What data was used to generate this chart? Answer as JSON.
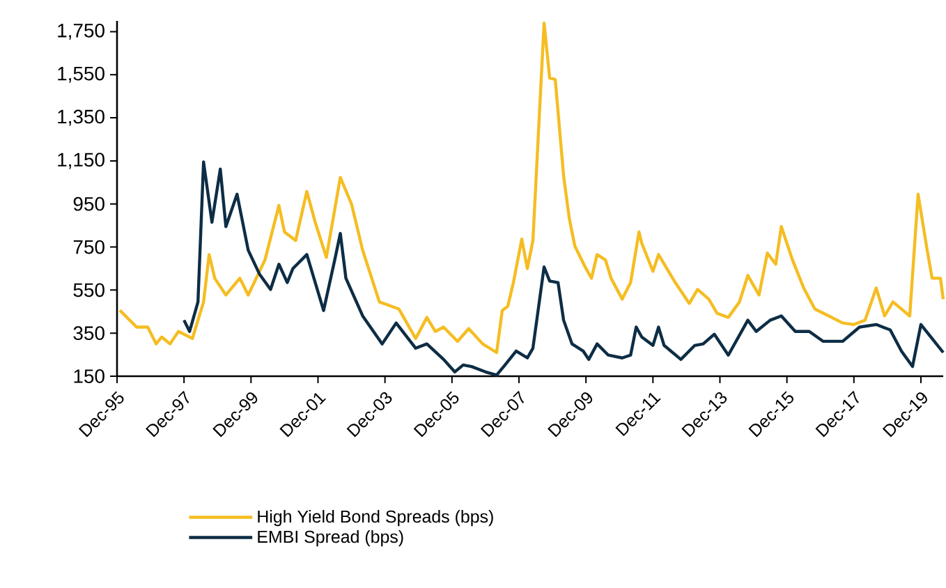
{
  "chart_data": {
    "type": "line",
    "xlim": [
      "1995-12",
      "2020-08"
    ],
    "xticks": [
      {
        "value": "1995-12",
        "label": "Dec-95"
      },
      {
        "value": "1997-12",
        "label": "Dec-97"
      },
      {
        "value": "1999-12",
        "label": "Dec-99"
      },
      {
        "value": "2001-12",
        "label": "Dec-01"
      },
      {
        "value": "2003-12",
        "label": "Dec-03"
      },
      {
        "value": "2005-12",
        "label": "Dec-05"
      },
      {
        "value": "2007-12",
        "label": "Dec-07"
      },
      {
        "value": "2009-12",
        "label": "Dec-09"
      },
      {
        "value": "2011-12",
        "label": "Dec-11"
      },
      {
        "value": "2013-12",
        "label": "Dec-13"
      },
      {
        "value": "2015-12",
        "label": "Dec-15"
      },
      {
        "value": "2017-12",
        "label": "Dec-17"
      },
      {
        "value": "2019-12",
        "label": "Dec-19"
      }
    ],
    "ylim": [
      150,
      1800
    ],
    "yticks": [
      150,
      350,
      550,
      750,
      950,
      {
        "value": 1150,
        "label": "1,150"
      },
      {
        "value": 1350,
        "label": "1,350"
      },
      {
        "value": 1550,
        "label": "1,550"
      },
      {
        "value": 1750,
        "label": "1,750"
      }
    ],
    "grid": false,
    "legend": "bottom",
    "marker": "none",
    "line_style": "solid",
    "series": [
      {
        "name": "High Yield Bond Spreads (bps)",
        "color": "#f5bd22",
        "x": [
          "1996-01",
          "1996-07",
          "1996-11",
          "1997-02",
          "1997-04",
          "1997-07",
          "1997-10",
          "1998-03",
          "1998-07",
          "1998-09",
          "1998-11",
          "1999-03",
          "1999-08",
          "1999-11",
          "2000-05",
          "2000-10",
          "2000-12",
          "2001-04",
          "2001-08",
          "2001-11",
          "2002-03",
          "2002-08",
          "2002-12",
          "2003-04",
          "2003-10",
          "2004-05",
          "2004-11",
          "2005-03",
          "2005-06",
          "2005-09",
          "2006-02",
          "2006-06",
          "2006-11",
          "2007-04",
          "2007-06",
          "2007-08",
          "2007-10",
          "2008-01",
          "2008-03",
          "2008-05",
          "2008-09",
          "2008-11",
          "2009-01",
          "2009-04",
          "2009-06",
          "2009-08",
          "2009-12",
          "2010-02",
          "2010-04",
          "2010-07",
          "2010-09",
          "2011-01",
          "2011-04",
          "2011-07",
          "2011-08",
          "2011-12",
          "2012-02",
          "2012-08",
          "2013-01",
          "2013-04",
          "2013-08",
          "2013-11",
          "2014-03",
          "2014-07",
          "2014-10",
          "2015-02",
          "2015-05",
          "2015-08",
          "2015-10",
          "2016-02",
          "2016-06",
          "2016-10",
          "2017-03",
          "2017-08",
          "2017-12",
          "2018-04",
          "2018-08",
          "2018-11",
          "2019-02",
          "2019-08",
          "2019-11",
          "2020-02",
          "2020-04",
          "2020-07",
          "2020-08"
        ],
        "values": [
          456,
          378,
          378,
          300,
          332,
          300,
          358,
          325,
          495,
          715,
          605,
          527,
          605,
          527,
          690,
          943,
          820,
          780,
          1008,
          865,
          702,
          1073,
          950,
          735,
          495,
          462,
          325,
          423,
          358,
          378,
          312,
          371,
          300,
          260,
          455,
          475,
          585,
          787,
          650,
          780,
          1790,
          1535,
          1528,
          1080,
          885,
          755,
          650,
          605,
          715,
          690,
          605,
          508,
          585,
          820,
          768,
          637,
          715,
          585,
          488,
          553,
          508,
          442,
          423,
          495,
          618,
          527,
          722,
          670,
          845,
          690,
          560,
          462,
          430,
          397,
          390,
          410,
          560,
          430,
          495,
          430,
          995,
          755,
          605,
          605,
          508
        ]
      },
      {
        "name": "EMBI Spread (bps)",
        "color": "#0d2d45",
        "x": [
          "1997-12",
          "1998-02",
          "1998-05",
          "1998-07",
          "1998-10",
          "1999-01",
          "1999-03",
          "1999-07",
          "1999-11",
          "2000-03",
          "2000-07",
          "2000-10",
          "2001-01",
          "2001-03",
          "2001-08",
          "2002-02",
          "2002-06",
          "2002-08",
          "2002-10",
          "2003-04",
          "2003-11",
          "2004-04",
          "2004-11",
          "2005-03",
          "2005-09",
          "2006-01",
          "2006-04",
          "2006-07",
          "2006-12",
          "2007-04",
          "2007-07",
          "2007-11",
          "2008-03",
          "2008-05",
          "2008-09",
          "2008-11",
          "2009-02",
          "2009-04",
          "2009-07",
          "2009-11",
          "2010-01",
          "2010-04",
          "2010-08",
          "2011-01",
          "2011-04",
          "2011-06",
          "2011-08",
          "2011-12",
          "2012-02",
          "2012-04",
          "2012-10",
          "2013-03",
          "2013-06",
          "2013-10",
          "2014-03",
          "2014-10",
          "2015-01",
          "2015-06",
          "2015-10",
          "2016-03",
          "2016-08",
          "2017-01",
          "2017-08",
          "2018-02",
          "2018-08",
          "2019-01",
          "2019-05",
          "2019-09",
          "2019-12",
          "2020-04",
          "2020-08"
        ],
        "values": [
          410,
          358,
          495,
          1145,
          865,
          1112,
          845,
          995,
          735,
          625,
          553,
          670,
          585,
          650,
          715,
          455,
          690,
          813,
          605,
          430,
          300,
          397,
          280,
          300,
          228,
          170,
          202,
          195,
          170,
          155,
          202,
          267,
          235,
          280,
          657,
          592,
          585,
          410,
          300,
          267,
          228,
          300,
          248,
          235,
          248,
          378,
          332,
          293,
          378,
          293,
          228,
          293,
          300,
          345,
          248,
          410,
          358,
          410,
          430,
          358,
          358,
          312,
          312,
          378,
          390,
          365,
          267,
          195,
          390,
          325,
          260
        ]
      }
    ]
  }
}
